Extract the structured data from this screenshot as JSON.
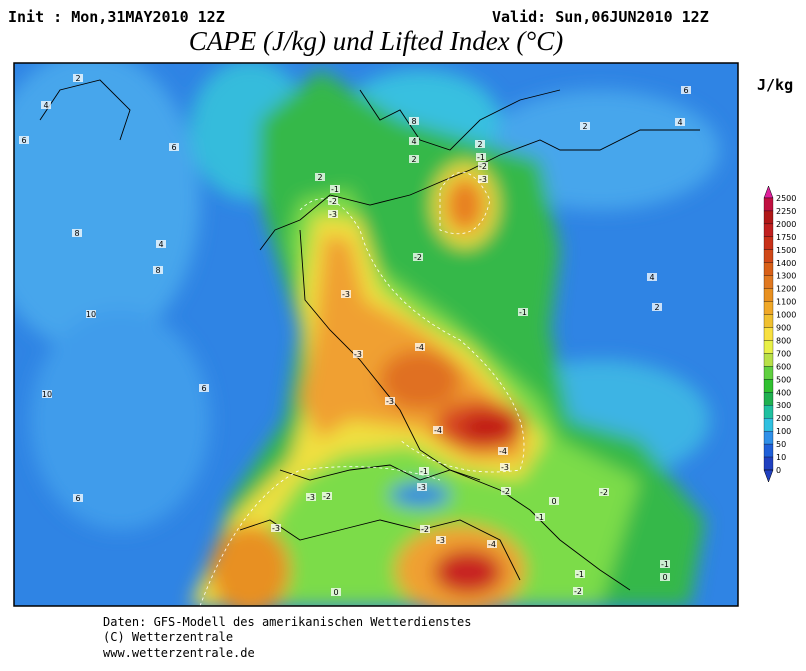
{
  "header": {
    "init": "Init : Mon,31MAY2010 12Z",
    "valid": "Valid: Sun,06JUN2010 12Z",
    "title": "CAPE (J/kg) und Lifted Index (°C)"
  },
  "colorbar": {
    "unit": "J/kg",
    "labels": [
      "2500",
      "2250",
      "2000",
      "1750",
      "1500",
      "1400",
      "1300",
      "1200",
      "1100",
      "1000",
      "900",
      "800",
      "700",
      "600",
      "500",
      "400",
      "300",
      "200",
      "100",
      "50",
      "10",
      "0"
    ],
    "colors": [
      "#e0209c",
      "#c01040",
      "#b01818",
      "#c02020",
      "#c83018",
      "#d04818",
      "#d86018",
      "#e07820",
      "#e89020",
      "#f0a828",
      "#f0c030",
      "#f8e040",
      "#e8f048",
      "#b8e048",
      "#60d040",
      "#30c030",
      "#20b050",
      "#20c0a0",
      "#30c0e0",
      "#3090e8",
      "#2060d8",
      "#2040c0"
    ]
  },
  "contour_labels": [
    "2",
    "4",
    "6",
    "6",
    "8",
    "4",
    "8",
    "10",
    "6",
    "10",
    "6",
    "2",
    "-1",
    "-2",
    "-3",
    "-3",
    "-3",
    "-4",
    "-3",
    "-4",
    "-4",
    "-3",
    "-2",
    "-1",
    "-1",
    "-3",
    "-2",
    "-3",
    "-2",
    "-3",
    "-2",
    "-3",
    "-4",
    "-1",
    "-2",
    "0",
    "-1",
    "0",
    "-1",
    "-2",
    "-3",
    "2",
    "2",
    "4",
    "8",
    "2",
    "4",
    "6",
    "4",
    "2",
    "-1",
    "-2",
    "0"
  ],
  "footer": [
    "Daten: GFS-Modell des amerikanischen Wetterdienstes",
    "(C) Wetterzentrale",
    "www.wetterzentrale.de"
  ]
}
